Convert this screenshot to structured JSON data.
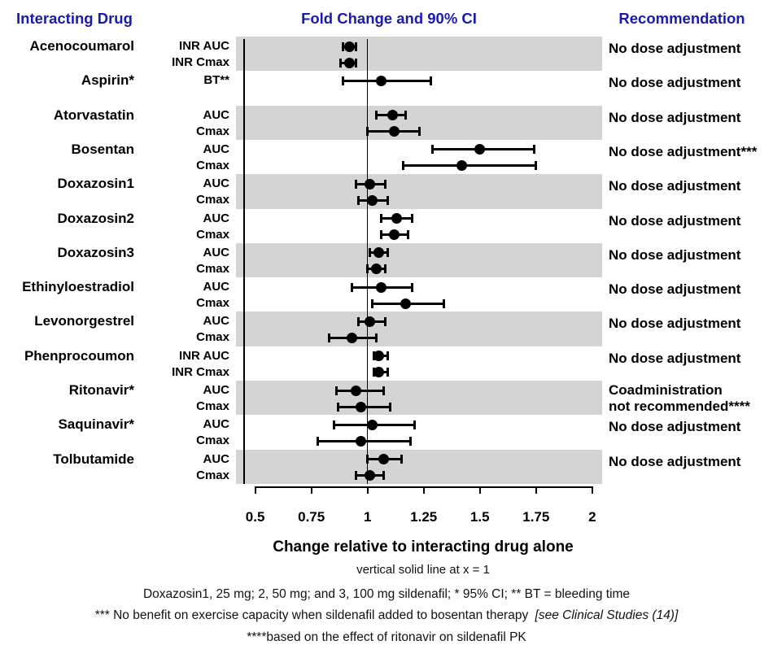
{
  "headers": {
    "interacting_drug": "Interacting Drug",
    "fold_change": "Fold Change and 90% CI",
    "recommendation": "Recommendation"
  },
  "footnotes": {
    "reference_line": "vertical solid line at x = 1",
    "doses": "Doxazosin1, 25 mg; 2, 50 mg; and 3, 100 mg sildenafil; * 95% CI; ** BT = bleeding time",
    "bosentan": "*** No benefit on exercise capacity when sildenafil added to bosentan therapy",
    "bosentan_citation": "[see Clinical Studies (14)]",
    "ritonavir": "****based on the effect of ritonavir on sildenafil PK"
  },
  "colors": {
    "header_blue": "#1a1aae",
    "band_gray": "#d4d4d4",
    "marker_black": "#000000"
  },
  "chart_data": {
    "type": "forest",
    "title": "Fold Change and 90% CI",
    "xlabel": "Change relative to interacting drug alone",
    "xlim": [
      0.5,
      2
    ],
    "x_ticks": [
      0.5,
      0.75,
      1,
      1.25,
      1.5,
      1.75,
      2
    ],
    "x_tick_labels": [
      "0.5",
      "0.75",
      "1",
      "1.25",
      "1.5",
      "1.75",
      "2"
    ],
    "reference_x": 1,
    "ci_level": "90% CI",
    "legend_position": "none",
    "grid": false,
    "groups": [
      {
        "drug": "Acenocoumarol",
        "shaded": true,
        "recommendation_lines": [
          "No dose adjustment"
        ],
        "rows": [
          {
            "measure": "INR AUC",
            "est": 0.92,
            "lo": 0.89,
            "hi": 0.95
          },
          {
            "measure": "INR Cmax",
            "est": 0.92,
            "lo": 0.88,
            "hi": 0.95
          }
        ]
      },
      {
        "drug": "Aspirin*",
        "shaded": false,
        "recommendation_lines": [
          "No dose adjustment"
        ],
        "rows": [
          {
            "measure": "BT**",
            "est": 1.06,
            "lo": 0.89,
            "hi": 1.28
          }
        ]
      },
      {
        "drug": "Atorvastatin",
        "shaded": true,
        "recommendation_lines": [
          "No dose adjustment"
        ],
        "rows": [
          {
            "measure": "AUC",
            "est": 1.11,
            "lo": 1.04,
            "hi": 1.17
          },
          {
            "measure": "Cmax",
            "est": 1.12,
            "lo": 1.0,
            "hi": 1.23
          }
        ]
      },
      {
        "drug": "Bosentan",
        "shaded": false,
        "recommendation_lines": [
          "No dose adjustment***"
        ],
        "rows": [
          {
            "measure": "AUC",
            "est": 1.5,
            "lo": 1.29,
            "hi": 1.74
          },
          {
            "measure": "Cmax",
            "est": 1.42,
            "lo": 1.16,
            "hi": 1.75
          }
        ]
      },
      {
        "drug": "Doxazosin1",
        "shaded": true,
        "recommendation_lines": [
          "No dose adjustment"
        ],
        "rows": [
          {
            "measure": "AUC",
            "est": 1.01,
            "lo": 0.95,
            "hi": 1.08
          },
          {
            "measure": "Cmax",
            "est": 1.02,
            "lo": 0.96,
            "hi": 1.09
          }
        ]
      },
      {
        "drug": "Doxazosin2",
        "shaded": false,
        "recommendation_lines": [
          "No dose adjustment"
        ],
        "rows": [
          {
            "measure": "AUC",
            "est": 1.13,
            "lo": 1.06,
            "hi": 1.2
          },
          {
            "measure": "Cmax",
            "est": 1.12,
            "lo": 1.06,
            "hi": 1.18
          }
        ]
      },
      {
        "drug": "Doxazosin3",
        "shaded": true,
        "recommendation_lines": [
          "No dose adjustment"
        ],
        "rows": [
          {
            "measure": "AUC",
            "est": 1.05,
            "lo": 1.01,
            "hi": 1.09
          },
          {
            "measure": "Cmax",
            "est": 1.04,
            "lo": 1.0,
            "hi": 1.08
          }
        ]
      },
      {
        "drug": "Ethinyloestradiol",
        "shaded": false,
        "recommendation_lines": [
          "No dose adjustment"
        ],
        "rows": [
          {
            "measure": "AUC",
            "est": 1.06,
            "lo": 0.93,
            "hi": 1.2
          },
          {
            "measure": "Cmax",
            "est": 1.17,
            "lo": 1.02,
            "hi": 1.34
          }
        ]
      },
      {
        "drug": "Levonorgestrel",
        "shaded": true,
        "recommendation_lines": [
          "No dose adjustment"
        ],
        "rows": [
          {
            "measure": "AUC",
            "est": 1.01,
            "lo": 0.96,
            "hi": 1.08
          },
          {
            "measure": "Cmax",
            "est": 0.93,
            "lo": 0.83,
            "hi": 1.04
          }
        ]
      },
      {
        "drug": "Phenprocoumon",
        "shaded": false,
        "recommendation_lines": [
          "No dose adjustment"
        ],
        "rows": [
          {
            "measure": "INR AUC",
            "est": 1.05,
            "lo": 1.03,
            "hi": 1.09
          },
          {
            "measure": "INR Cmax",
            "est": 1.05,
            "lo": 1.03,
            "hi": 1.09
          }
        ]
      },
      {
        "drug": "Ritonavir*",
        "shaded": true,
        "recommendation_lines": [
          "Coadministration",
          "not recommended****"
        ],
        "rows": [
          {
            "measure": "AUC",
            "est": 0.95,
            "lo": 0.86,
            "hi": 1.07
          },
          {
            "measure": "Cmax",
            "est": 0.97,
            "lo": 0.87,
            "hi": 1.1
          }
        ]
      },
      {
        "drug": "Saquinavir*",
        "shaded": false,
        "recommendation_lines": [
          "No dose adjustment"
        ],
        "rows": [
          {
            "measure": "AUC",
            "est": 1.02,
            "lo": 0.85,
            "hi": 1.21
          },
          {
            "measure": "Cmax",
            "est": 0.97,
            "lo": 0.78,
            "hi": 1.19
          }
        ]
      },
      {
        "drug": "Tolbutamide",
        "shaded": true,
        "recommendation_lines": [
          "No dose adjustment"
        ],
        "rows": [
          {
            "measure": "AUC",
            "est": 1.07,
            "lo": 1.0,
            "hi": 1.15
          },
          {
            "measure": "Cmax",
            "est": 1.01,
            "lo": 0.95,
            "hi": 1.07
          }
        ]
      }
    ]
  }
}
